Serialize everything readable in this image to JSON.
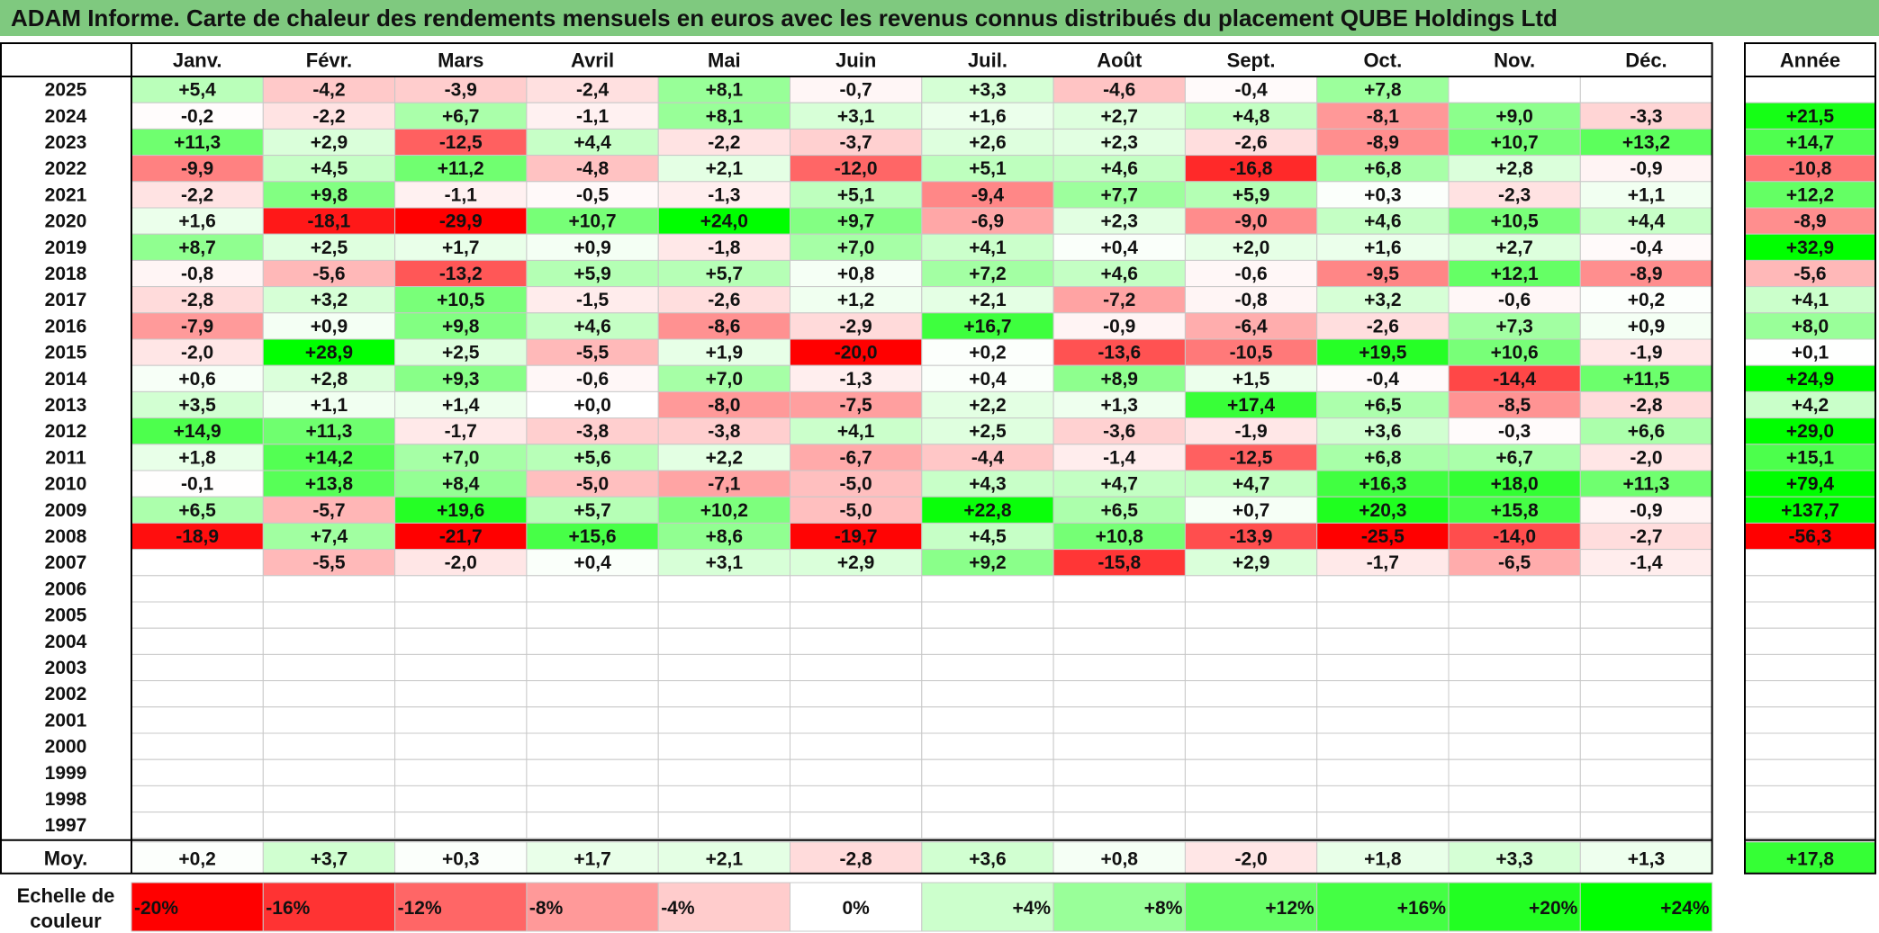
{
  "title": "ADAM Informe. Carte de chaleur des rendements mensuels en euros avec les revenus connus distribués du placement QUBE Holdings Ltd",
  "chart_data": {
    "type": "heatmap",
    "months": [
      "Janv.",
      "Févr.",
      "Mars",
      "Avril",
      "Mai",
      "Juin",
      "Juil.",
      "Août",
      "Sept.",
      "Oct.",
      "Nov.",
      "Déc."
    ],
    "year_header": "Année",
    "rows": [
      {
        "year": "2025",
        "values": [
          "+5,4",
          "-4,2",
          "-3,9",
          "-2,4",
          "+8,1",
          "-0,7",
          "+3,3",
          "-4,6",
          "-0,4",
          "+7,8",
          "",
          ""
        ],
        "annual": ""
      },
      {
        "year": "2024",
        "values": [
          "-0,2",
          "-2,2",
          "+6,7",
          "-1,1",
          "+8,1",
          "+3,1",
          "+1,6",
          "+2,7",
          "+4,8",
          "-8,1",
          "+9,0",
          "-3,3"
        ],
        "annual": "+21,5"
      },
      {
        "year": "2023",
        "values": [
          "+11,3",
          "+2,9",
          "-12,5",
          "+4,4",
          "-2,2",
          "-3,7",
          "+2,6",
          "+2,3",
          "-2,6",
          "-8,9",
          "+10,7",
          "+13,2"
        ],
        "annual": "+14,7"
      },
      {
        "year": "2022",
        "values": [
          "-9,9",
          "+4,5",
          "+11,2",
          "-4,8",
          "+2,1",
          "-12,0",
          "+5,1",
          "+4,6",
          "-16,8",
          "+6,8",
          "+2,8",
          "-0,9"
        ],
        "annual": "-10,8"
      },
      {
        "year": "2021",
        "values": [
          "-2,2",
          "+9,8",
          "-1,1",
          "-0,5",
          "-1,3",
          "+5,1",
          "-9,4",
          "+7,7",
          "+5,9",
          "+0,3",
          "-2,3",
          "+1,1"
        ],
        "annual": "+12,2"
      },
      {
        "year": "2020",
        "values": [
          "+1,6",
          "-18,1",
          "-29,9",
          "+10,7",
          "+24,0",
          "+9,7",
          "-6,9",
          "+2,3",
          "-9,0",
          "+4,6",
          "+10,5",
          "+4,4"
        ],
        "annual": "-8,9"
      },
      {
        "year": "2019",
        "values": [
          "+8,7",
          "+2,5",
          "+1,7",
          "+0,9",
          "-1,8",
          "+7,0",
          "+4,1",
          "+0,4",
          "+2,0",
          "+1,6",
          "+2,7",
          "-0,4"
        ],
        "annual": "+32,9"
      },
      {
        "year": "2018",
        "values": [
          "-0,8",
          "-5,6",
          "-13,2",
          "+5,9",
          "+5,7",
          "+0,8",
          "+7,2",
          "+4,6",
          "-0,6",
          "-9,5",
          "+12,1",
          "-8,9"
        ],
        "annual": "-5,6"
      },
      {
        "year": "2017",
        "values": [
          "-2,8",
          "+3,2",
          "+10,5",
          "-1,5",
          "-2,6",
          "+1,2",
          "+2,1",
          "-7,2",
          "-0,8",
          "+3,2",
          "-0,6",
          "+0,2"
        ],
        "annual": "+4,1"
      },
      {
        "year": "2016",
        "values": [
          "-7,9",
          "+0,9",
          "+9,8",
          "+4,6",
          "-8,6",
          "-2,9",
          "+16,7",
          "-0,9",
          "-6,4",
          "-2,6",
          "+7,3",
          "+0,9"
        ],
        "annual": "+8,0"
      },
      {
        "year": "2015",
        "values": [
          "-2,0",
          "+28,9",
          "+2,5",
          "-5,5",
          "+1,9",
          "-20,0",
          "+0,2",
          "-13,6",
          "-10,5",
          "+19,5",
          "+10,6",
          "-1,9"
        ],
        "annual": "+0,1"
      },
      {
        "year": "2014",
        "values": [
          "+0,6",
          "+2,8",
          "+9,3",
          "-0,6",
          "+7,0",
          "-1,3",
          "+0,4",
          "+8,9",
          "+1,5",
          "-0,4",
          "-14,4",
          "+11,5"
        ],
        "annual": "+24,9"
      },
      {
        "year": "2013",
        "values": [
          "+3,5",
          "+1,1",
          "+1,4",
          "+0,0",
          "-8,0",
          "-7,5",
          "+2,2",
          "+1,3",
          "+17,4",
          "+6,5",
          "-8,5",
          "-2,8"
        ],
        "annual": "+4,2"
      },
      {
        "year": "2012",
        "values": [
          "+14,9",
          "+11,3",
          "-1,7",
          "-3,8",
          "-3,8",
          "+4,1",
          "+2,5",
          "-3,6",
          "-1,9",
          "+3,6",
          "-0,3",
          "+6,6"
        ],
        "annual": "+29,0"
      },
      {
        "year": "2011",
        "values": [
          "+1,8",
          "+14,2",
          "+7,0",
          "+5,6",
          "+2,2",
          "-6,7",
          "-4,4",
          "-1,4",
          "-12,5",
          "+6,8",
          "+6,7",
          "-2,0"
        ],
        "annual": "+15,1"
      },
      {
        "year": "2010",
        "values": [
          "-0,1",
          "+13,8",
          "+8,4",
          "-5,0",
          "-7,1",
          "-5,0",
          "+4,3",
          "+4,7",
          "+4,7",
          "+16,3",
          "+18,0",
          "+11,3"
        ],
        "annual": "+79,4"
      },
      {
        "year": "2009",
        "values": [
          "+6,5",
          "-5,7",
          "+19,6",
          "+5,7",
          "+10,2",
          "-5,0",
          "+22,8",
          "+6,5",
          "+0,7",
          "+20,3",
          "+15,8",
          "-0,9"
        ],
        "annual": "+137,7"
      },
      {
        "year": "2008",
        "values": [
          "-18,9",
          "+7,4",
          "-21,7",
          "+15,6",
          "+8,6",
          "-19,7",
          "+4,5",
          "+10,8",
          "-13,9",
          "-25,5",
          "-14,0",
          "-2,7"
        ],
        "annual": "-56,3"
      },
      {
        "year": "2007",
        "values": [
          "",
          "-5,5",
          "-2,0",
          "+0,4",
          "+3,1",
          "+2,9",
          "+9,2",
          "-15,8",
          "+2,9",
          "-1,7",
          "-6,5",
          "-1,4"
        ],
        "annual": ""
      },
      {
        "year": "2006",
        "values": [
          "",
          "",
          "",
          "",
          "",
          "",
          "",
          "",
          "",
          "",
          "",
          ""
        ],
        "annual": ""
      },
      {
        "year": "2005",
        "values": [
          "",
          "",
          "",
          "",
          "",
          "",
          "",
          "",
          "",
          "",
          "",
          ""
        ],
        "annual": ""
      },
      {
        "year": "2004",
        "values": [
          "",
          "",
          "",
          "",
          "",
          "",
          "",
          "",
          "",
          "",
          "",
          ""
        ],
        "annual": ""
      },
      {
        "year": "2003",
        "values": [
          "",
          "",
          "",
          "",
          "",
          "",
          "",
          "",
          "",
          "",
          "",
          ""
        ],
        "annual": ""
      },
      {
        "year": "2002",
        "values": [
          "",
          "",
          "",
          "",
          "",
          "",
          "",
          "",
          "",
          "",
          "",
          ""
        ],
        "annual": ""
      },
      {
        "year": "2001",
        "values": [
          "",
          "",
          "",
          "",
          "",
          "",
          "",
          "",
          "",
          "",
          "",
          ""
        ],
        "annual": ""
      },
      {
        "year": "2000",
        "values": [
          "",
          "",
          "",
          "",
          "",
          "",
          "",
          "",
          "",
          "",
          "",
          ""
        ],
        "annual": ""
      },
      {
        "year": "1999",
        "values": [
          "",
          "",
          "",
          "",
          "",
          "",
          "",
          "",
          "",
          "",
          "",
          ""
        ],
        "annual": ""
      },
      {
        "year": "1998",
        "values": [
          "",
          "",
          "",
          "",
          "",
          "",
          "",
          "",
          "",
          "",
          "",
          ""
        ],
        "annual": ""
      },
      {
        "year": "1997",
        "values": [
          "",
          "",
          "",
          "",
          "",
          "",
          "",
          "",
          "",
          "",
          "",
          ""
        ],
        "annual": ""
      }
    ],
    "average": {
      "label": "Moy.",
      "values": [
        "+0,2",
        "+3,7",
        "+0,3",
        "+1,7",
        "+2,1",
        "-2,8",
        "+3,6",
        "+0,8",
        "-2,0",
        "+1,8",
        "+3,3",
        "+1,3"
      ],
      "annual": "+17,8"
    },
    "color_scale": {
      "label_line1": "Echelle de",
      "label_line2": "couleur",
      "stops": [
        {
          "label": "-20%",
          "value": -20,
          "color": "#ff0000"
        },
        {
          "label": "-16%",
          "value": -16,
          "color": "#ff3333"
        },
        {
          "label": "-12%",
          "value": -12,
          "color": "#ff6666"
        },
        {
          "label": "-8%",
          "value": -8,
          "color": "#ff9999"
        },
        {
          "label": "-4%",
          "value": -4,
          "color": "#ffcccc"
        },
        {
          "label": "0%",
          "value": 0,
          "color": "#ffffff"
        },
        {
          "label": "+4%",
          "value": 4,
          "color": "#ccffcc"
        },
        {
          "label": "+8%",
          "value": 8,
          "color": "#99ff99"
        },
        {
          "label": "+12%",
          "value": 12,
          "color": "#66ff66"
        },
        {
          "label": "+16%",
          "value": 16,
          "color": "#44ff44"
        },
        {
          "label": "+20%",
          "value": 20,
          "color": "#22ff22"
        },
        {
          "label": "+24%",
          "value": 24,
          "color": "#00ff00"
        }
      ]
    }
  }
}
